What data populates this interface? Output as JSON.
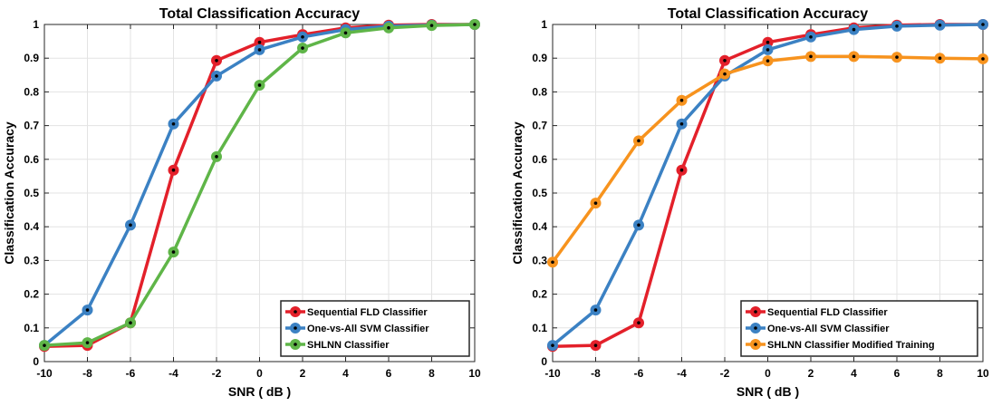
{
  "chart_data": [
    {
      "type": "line",
      "title": "Total Classification Accuracy",
      "xlabel": "SNR ( dB )",
      "ylabel": "Classification Accuracy",
      "xlim": [
        -10,
        10
      ],
      "ylim": [
        0,
        1
      ],
      "xticks": [
        "-10",
        "-8",
        "-6",
        "-4",
        "-2",
        "0",
        "2",
        "4",
        "6",
        "8",
        "10"
      ],
      "yticks": [
        "0",
        "0.1",
        "0.2",
        "0.3",
        "0.4",
        "0.5",
        "0.6",
        "0.7",
        "0.8",
        "0.9",
        "1"
      ],
      "grid": true,
      "legend_position": "bottom-right",
      "x": [
        -10,
        -8,
        -6,
        -4,
        -2,
        0,
        2,
        4,
        6,
        8,
        10
      ],
      "series": [
        {
          "name": "Sequential FLD Classifier",
          "color": "#e3202a",
          "values": [
            0.045,
            0.048,
            0.115,
            0.568,
            0.893,
            0.947,
            0.97,
            0.99,
            0.998,
            1.0,
            1.0
          ]
        },
        {
          "name": "One-vs-All SVM Classifier",
          "color": "#3b81c3",
          "values": [
            0.048,
            0.153,
            0.405,
            0.705,
            0.847,
            0.925,
            0.963,
            0.985,
            0.995,
            0.998,
            1.0
          ]
        },
        {
          "name": "SHLNN Classifier",
          "color": "#5fb548",
          "values": [
            0.048,
            0.056,
            0.115,
            0.325,
            0.608,
            0.82,
            0.93,
            0.975,
            0.99,
            0.997,
            1.0
          ]
        }
      ]
    },
    {
      "type": "line",
      "title": "Total Classification Accuracy",
      "xlabel": "SNR ( dB )",
      "ylabel": "Classification Accuracy",
      "xlim": [
        -10,
        10
      ],
      "ylim": [
        0,
        1
      ],
      "xticks": [
        "-10",
        "-8",
        "-6",
        "-4",
        "-2",
        "0",
        "2",
        "4",
        "6",
        "8",
        "10"
      ],
      "yticks": [
        "0",
        "0.1",
        "0.2",
        "0.3",
        "0.4",
        "0.5",
        "0.6",
        "0.7",
        "0.8",
        "0.9",
        "1"
      ],
      "grid": true,
      "legend_position": "bottom-right",
      "x": [
        -10,
        -8,
        -6,
        -4,
        -2,
        0,
        2,
        4,
        6,
        8,
        10
      ],
      "series": [
        {
          "name": "Sequential FLD Classifier",
          "color": "#e3202a",
          "values": [
            0.045,
            0.048,
            0.115,
            0.568,
            0.893,
            0.947,
            0.97,
            0.99,
            0.998,
            1.0,
            1.0
          ]
        },
        {
          "name": "One-vs-All SVM Classifier",
          "color": "#3b81c3",
          "values": [
            0.048,
            0.153,
            0.405,
            0.705,
            0.847,
            0.925,
            0.963,
            0.985,
            0.995,
            0.998,
            1.0
          ]
        },
        {
          "name": "SHLNN Classifier Modified Training",
          "color": "#f7931e",
          "values": [
            0.295,
            0.47,
            0.655,
            0.775,
            0.853,
            0.892,
            0.905,
            0.905,
            0.903,
            0.9,
            0.898
          ]
        }
      ]
    }
  ]
}
